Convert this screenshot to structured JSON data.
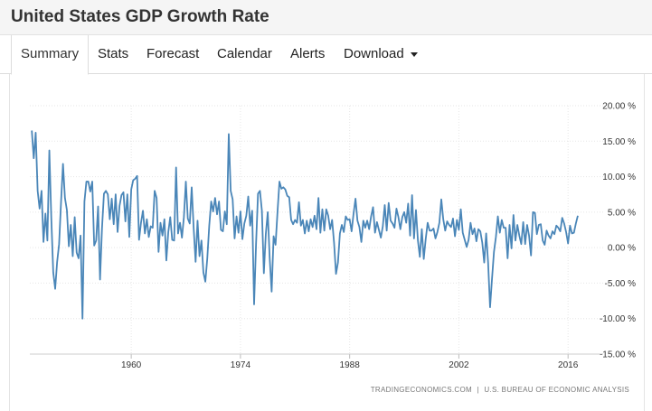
{
  "header": {
    "title": "United States GDP Growth Rate"
  },
  "tabs": [
    {
      "label": "Summary",
      "active": true
    },
    {
      "label": "Stats"
    },
    {
      "label": "Forecast"
    },
    {
      "label": "Calendar"
    },
    {
      "label": "Alerts"
    },
    {
      "label": "Download",
      "has_dropdown": true
    }
  ],
  "footer": {
    "source_left": "TRADINGECONOMICS.COM",
    "separator": "|",
    "source_right": "U.S. BUREAU OF ECONOMIC ANALYSIS"
  },
  "chart_data": {
    "type": "line",
    "title": "",
    "xlabel": "",
    "ylabel": "",
    "x_start": 1947.25,
    "x_step": 0.25,
    "xlim": [
      1947,
      2020.5
    ],
    "ylim": [
      -15,
      20
    ],
    "x_ticks": [
      1960,
      1974,
      1988,
      2002,
      2016
    ],
    "y_ticks": [
      {
        "value": 20,
        "label": "20.00 %"
      },
      {
        "value": 15,
        "label": "15.00 %"
      },
      {
        "value": 10,
        "label": "10.00 %"
      },
      {
        "value": 5,
        "label": "5.00 %"
      },
      {
        "value": 0,
        "label": "0.00 %"
      },
      {
        "value": -5,
        "label": "-5.00 %"
      },
      {
        "value": -10,
        "label": "-10.00 %"
      },
      {
        "value": -15,
        "label": "-15.00 %"
      }
    ],
    "grid": true,
    "color": "#4a86b8",
    "series": [
      {
        "values": [
          16.5,
          12.6,
          16.2,
          8.0,
          5.5,
          8.0,
          0.8,
          4.8,
          1.0,
          13.7,
          4.2,
          -3.5,
          -5.8,
          -2.0,
          0.5,
          6.4,
          11.8,
          7.0,
          5.3,
          0.2,
          3.2,
          -1.2,
          4.3,
          -0.7,
          -1.5,
          1.7,
          -10.0,
          6.5,
          9.3,
          9.3,
          7.9,
          9.3,
          0.3,
          1.0,
          5.8,
          -4.5,
          2.7,
          7.6,
          8.0,
          7.5,
          4.0,
          6.9,
          3.3,
          7.5,
          2.2,
          5.9,
          7.4,
          7.8,
          3.7,
          7.5,
          1.5,
          8.2,
          9.5,
          9.7,
          10.1,
          1.1,
          3.5,
          5.2,
          2.0,
          4.0,
          1.5,
          3.0,
          2.8,
          8.0,
          7.0,
          -0.6,
          3.5,
          1.7,
          4.0,
          -1.8,
          2.2,
          4.3,
          1.1,
          1.0,
          11.3,
          2.0,
          3.5,
          1.4,
          4.3,
          9.3,
          4.1,
          3.4,
          8.5,
          2.8,
          -2.0,
          3.8,
          -1.2,
          1.0,
          -3.5,
          -4.8,
          -1.5,
          3.1,
          6.5,
          5.1,
          7.0,
          4.7,
          6.5,
          2.5,
          2.3,
          5.1,
          3.3,
          16.0,
          8.0,
          6.8,
          1.3,
          4.4,
          2.1,
          5.1,
          1.2,
          3.4,
          4.5,
          7.2,
          3.1,
          5.2,
          -8.0,
          0.5,
          7.6,
          8.0,
          5.2,
          -3.6,
          1.9,
          5.0,
          -1.5,
          -6.2,
          1.6,
          0.4,
          5.0,
          9.3,
          8.3,
          8.5,
          8.2,
          7.3,
          7.1,
          3.9,
          3.3,
          3.9,
          3.5,
          6.4,
          3.1,
          3.9,
          2.0,
          3.8,
          2.3,
          4.0,
          2.9,
          4.5,
          2.6,
          7.0,
          2.1,
          5.4,
          2.4,
          5.4,
          4.5,
          2.6,
          3.9,
          0.7,
          -3.7,
          -2.1,
          2.0,
          3.2,
          2.2,
          4.4,
          3.9,
          4.0,
          2.3,
          4.8,
          6.9,
          3.8,
          2.9,
          0.8,
          3.8,
          2.8,
          3.8,
          2.6,
          4.4,
          5.7,
          2.1,
          3.6,
          2.5,
          1.4,
          3.0,
          6.0,
          2.4,
          6.3,
          3.8,
          3.4,
          2.8,
          5.5,
          4.3,
          2.6,
          4.3,
          5.0,
          3.5,
          6.2,
          1.7,
          7.4,
          1.3,
          5.3,
          1.0,
          -1.3,
          2.6,
          -1.6,
          1.2,
          3.5,
          2.4,
          2.4,
          2.7,
          1.3,
          2.2,
          3.5,
          6.8,
          4.0,
          2.4,
          3.7,
          3.2,
          2.9,
          4.1,
          1.6,
          3.9,
          2.5,
          5.4,
          2.1,
          1.1,
          0.1,
          1.1,
          3.5,
          1.9,
          2.7,
          0.9,
          2.6,
          2.3,
          0.7,
          -2.1,
          2.0,
          -2.1,
          -8.4,
          -4.4,
          -0.6,
          1.5,
          4.4,
          2.1,
          3.9,
          2.8,
          2.8,
          -1.5,
          3.2,
          -0.1,
          4.6,
          1.0,
          3.2,
          1.7,
          0.5,
          3.6,
          0.5,
          3.2,
          1.7,
          -1.1,
          5.0,
          4.9,
          1.9,
          3.2,
          3.3,
          1.0,
          0.4,
          2.4,
          1.7,
          1.3,
          2.3,
          1.9,
          3.1,
          2.8,
          2.3,
          4.2,
          3.4,
          2.2,
          0.6,
          3.1,
          2.0,
          2.1,
          3.4,
          4.5
        ]
      }
    ]
  }
}
